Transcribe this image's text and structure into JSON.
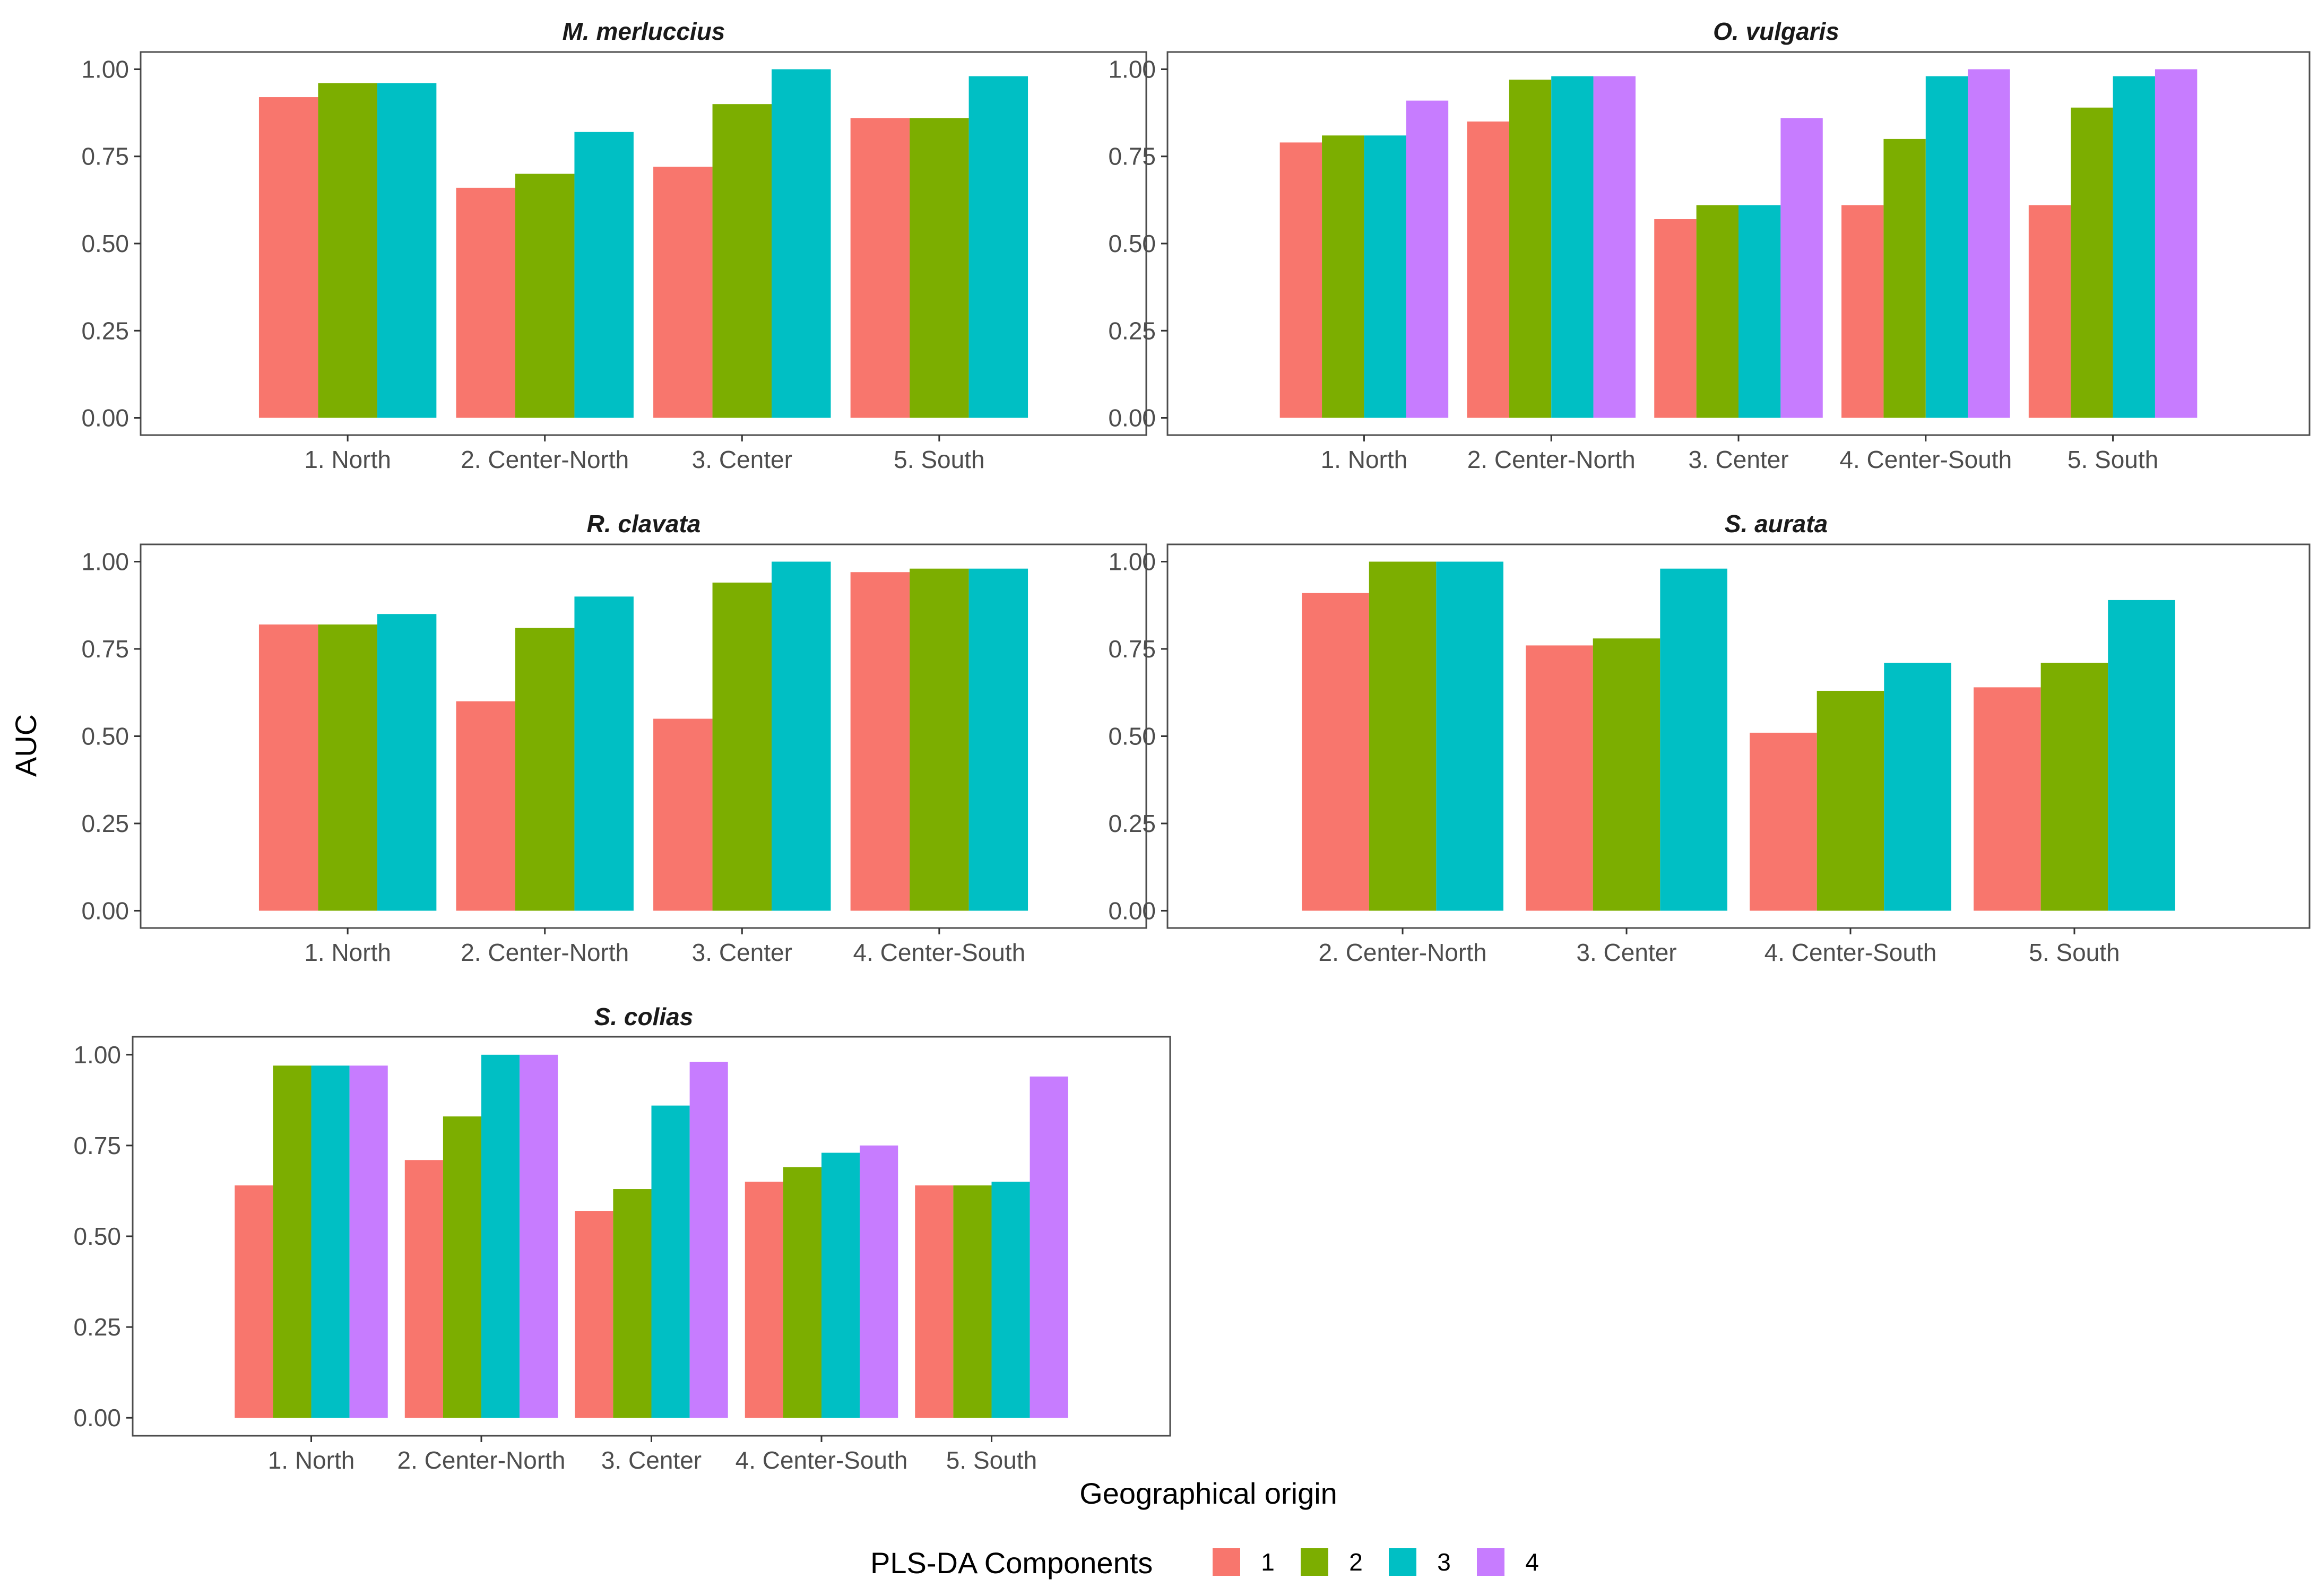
{
  "figure": {
    "y_axis_title": "AUC",
    "x_axis_title": "Geographical origin",
    "legend_title": "PLS-DA Components"
  },
  "colors": {
    "1": "#F8766D",
    "2": "#7CAE00",
    "3": "#00BFC4",
    "4": "#C77CFF",
    "panel_border": "#4d4d4d",
    "tick": "#333333"
  },
  "chart_data": [
    {
      "type": "bar",
      "title": "M. merluccius",
      "xlabel": "Geographical origin",
      "ylabel": "AUC",
      "ylim": [
        0,
        1
      ],
      "y_ticks": [
        "0.00",
        "0.25",
        "0.50",
        "0.75",
        "1.00"
      ],
      "grid": false,
      "categories": [
        "1. North",
        "2. Center-North",
        "3. Center",
        "5. South"
      ],
      "series": [
        {
          "name": "1",
          "values": [
            0.92,
            0.66,
            0.72,
            0.86
          ]
        },
        {
          "name": "2",
          "values": [
            0.96,
            0.7,
            0.9,
            0.86
          ]
        },
        {
          "name": "3",
          "values": [
            0.96,
            0.82,
            1.0,
            0.98
          ]
        }
      ]
    },
    {
      "type": "bar",
      "title": "O. vulgaris",
      "xlabel": "Geographical origin",
      "ylabel": "AUC",
      "ylim": [
        0,
        1
      ],
      "y_ticks": [
        "0.00",
        "0.25",
        "0.50",
        "0.75",
        "1.00"
      ],
      "grid": false,
      "categories": [
        "1. North",
        "2. Center-North",
        "3. Center",
        "4. Center-South",
        "5. South"
      ],
      "series": [
        {
          "name": "1",
          "values": [
            0.79,
            0.85,
            0.57,
            0.61,
            0.61
          ]
        },
        {
          "name": "2",
          "values": [
            0.81,
            0.97,
            0.61,
            0.8,
            0.89
          ]
        },
        {
          "name": "3",
          "values": [
            0.81,
            0.98,
            0.61,
            0.98,
            0.98
          ]
        },
        {
          "name": "4",
          "values": [
            0.91,
            0.98,
            0.86,
            1.0,
            1.0
          ]
        }
      ]
    },
    {
      "type": "bar",
      "title": "R. clavata",
      "xlabel": "Geographical origin",
      "ylabel": "AUC",
      "ylim": [
        0,
        1
      ],
      "y_ticks": [
        "0.00",
        "0.25",
        "0.50",
        "0.75",
        "1.00"
      ],
      "grid": false,
      "categories": [
        "1. North",
        "2. Center-North",
        "3. Center",
        "4. Center-South"
      ],
      "series": [
        {
          "name": "1",
          "values": [
            0.82,
            0.6,
            0.55,
            0.97
          ]
        },
        {
          "name": "2",
          "values": [
            0.82,
            0.81,
            0.94,
            0.98
          ]
        },
        {
          "name": "3",
          "values": [
            0.85,
            0.9,
            1.0,
            0.98
          ]
        }
      ]
    },
    {
      "type": "bar",
      "title": "S. aurata",
      "xlabel": "Geographical origin",
      "ylabel": "AUC",
      "ylim": [
        0,
        1
      ],
      "y_ticks": [
        "0.00",
        "0.25",
        "0.50",
        "0.75",
        "1.00"
      ],
      "grid": false,
      "categories": [
        "2. Center-North",
        "3. Center",
        "4. Center-South",
        "5. South"
      ],
      "series": [
        {
          "name": "1",
          "values": [
            0.91,
            0.76,
            0.51,
            0.64
          ]
        },
        {
          "name": "2",
          "values": [
            1.0,
            0.78,
            0.63,
            0.71
          ]
        },
        {
          "name": "3",
          "values": [
            1.0,
            0.98,
            0.71,
            0.89
          ]
        }
      ]
    },
    {
      "type": "bar",
      "title": "S. colias",
      "xlabel": "Geographical origin",
      "ylabel": "AUC",
      "ylim": [
        0,
        1
      ],
      "y_ticks": [
        "0.00",
        "0.25",
        "0.50",
        "0.75",
        "1.00"
      ],
      "grid": false,
      "categories": [
        "1. North",
        "2. Center-North",
        "3. Center",
        "4. Center-South",
        "5. South"
      ],
      "series": [
        {
          "name": "1",
          "values": [
            0.64,
            0.71,
            0.57,
            0.65,
            0.64
          ]
        },
        {
          "name": "2",
          "values": [
            0.97,
            0.83,
            0.63,
            0.69,
            0.64
          ]
        },
        {
          "name": "3",
          "values": [
            0.97,
            1.0,
            0.86,
            0.73,
            0.65
          ]
        },
        {
          "name": "4",
          "values": [
            0.97,
            1.0,
            0.98,
            0.75,
            0.94
          ]
        }
      ]
    }
  ],
  "legend": {
    "position": "bottom",
    "entries": [
      {
        "key": "1",
        "label": "1"
      },
      {
        "key": "2",
        "label": "2"
      },
      {
        "key": "3",
        "label": "3"
      },
      {
        "key": "4",
        "label": "4"
      }
    ]
  }
}
